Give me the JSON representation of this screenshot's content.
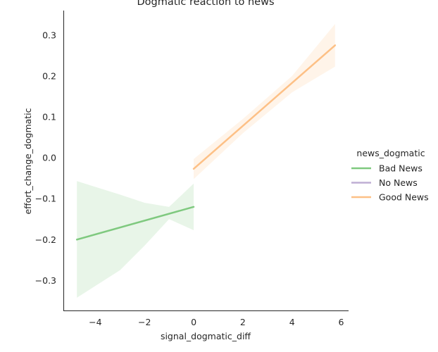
{
  "chart_data": {
    "type": "line",
    "title": "Dogmatic reaction to news",
    "xlabel": "signal_dogmatic_diff",
    "ylabel": "effort_change_dogmatic",
    "xlim": [
      -5.3,
      6.3
    ],
    "ylim": [
      -0.375,
      0.36
    ],
    "x_ticks": [
      -4,
      -2,
      0,
      2,
      4,
      6
    ],
    "x_tick_labels": [
      "−4",
      "−2",
      "0",
      "2",
      "4",
      "6"
    ],
    "y_ticks": [
      -0.3,
      -0.2,
      -0.1,
      0.0,
      0.1,
      0.2,
      0.3
    ],
    "y_tick_labels": [
      "−0.3",
      "−0.2",
      "−0.1",
      "0.0",
      "0.1",
      "0.2",
      "0.3"
    ],
    "grid": false,
    "legend": {
      "title": "news_dogmatic",
      "placement": "right",
      "entries": [
        "Bad News",
        "No News",
        "Good News"
      ]
    },
    "series": [
      {
        "name": "Bad News",
        "color": "#7fc97f",
        "line": [
          [
            -4.75,
            -0.2
          ],
          [
            0.0,
            -0.12
          ]
        ],
        "ci_upper": [
          [
            -4.75,
            -0.057
          ],
          [
            -3.0,
            -0.09
          ],
          [
            -2.0,
            -0.11
          ],
          [
            -1.0,
            -0.12
          ],
          [
            0.0,
            -0.063
          ]
        ],
        "ci_lower": [
          [
            -4.75,
            -0.342
          ],
          [
            -3.0,
            -0.275
          ],
          [
            -2.0,
            -0.215
          ],
          [
            -1.0,
            -0.15
          ],
          [
            0.0,
            -0.177
          ]
        ]
      },
      {
        "name": "No News",
        "color": "#beaed4",
        "line": [],
        "ci_upper": [],
        "ci_lower": []
      },
      {
        "name": "Good News",
        "color": "#fdc086",
        "line": [
          [
            0.0,
            -0.027
          ],
          [
            5.75,
            0.275
          ]
        ],
        "ci_upper": [
          [
            0.0,
            -0.003
          ],
          [
            2.0,
            0.095
          ],
          [
            4.0,
            0.2
          ],
          [
            5.75,
            0.327
          ]
        ],
        "ci_lower": [
          [
            0.0,
            -0.052
          ],
          [
            2.0,
            0.06
          ],
          [
            4.0,
            0.16
          ],
          [
            5.75,
            0.223
          ]
        ]
      }
    ]
  }
}
